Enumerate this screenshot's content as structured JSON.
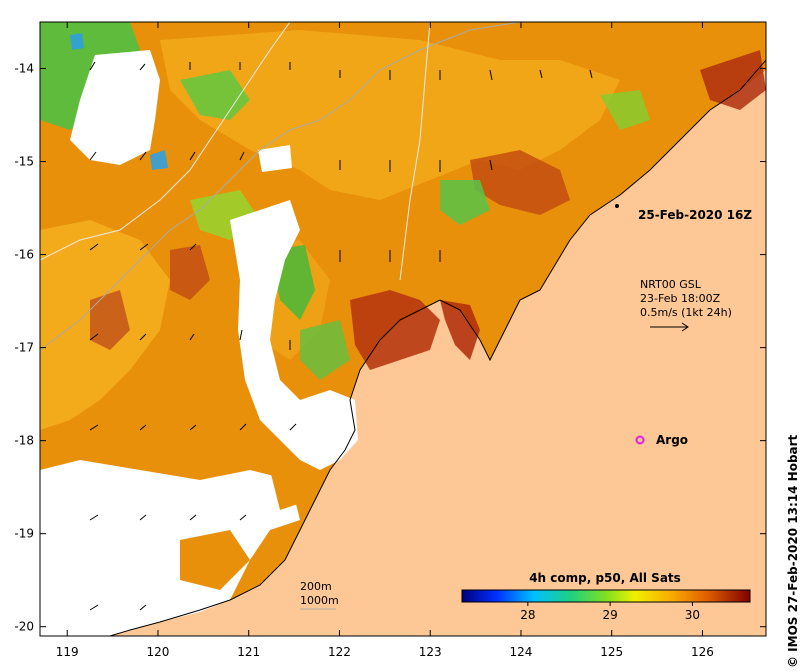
{
  "map": {
    "x_ticks": [
      "119",
      "120",
      "121",
      "122",
      "123",
      "124",
      "125",
      "126"
    ],
    "y_ticks": [
      "-14",
      "-15",
      "-16",
      "-17",
      "-18",
      "-19",
      "-20"
    ],
    "lon_range": [
      118.7,
      126.7
    ],
    "lat_range": [
      -20.1,
      -13.5
    ]
  },
  "annotations": {
    "date_label": "25-Feb-2020 16Z",
    "current_line1": "NRT00 GSL",
    "current_line2": "23-Feb 18:00Z",
    "current_line3": "0.5m/s (1kt 24h)",
    "argo_label": "Argo",
    "depth_line1": "200m",
    "depth_line2": "1000m"
  },
  "colorbar": {
    "title": "4h comp, p50, All Sats",
    "ticks": [
      "28",
      "29",
      "30"
    ],
    "range": [
      27.2,
      30.7
    ],
    "tick_values": [
      28,
      29,
      30
    ]
  },
  "credit": "© IMOS 27-Feb-2020 13:14 Hobart",
  "colors": {
    "land": "#fdc896",
    "no_data": "#ffffff",
    "argo": "#e020e0"
  }
}
